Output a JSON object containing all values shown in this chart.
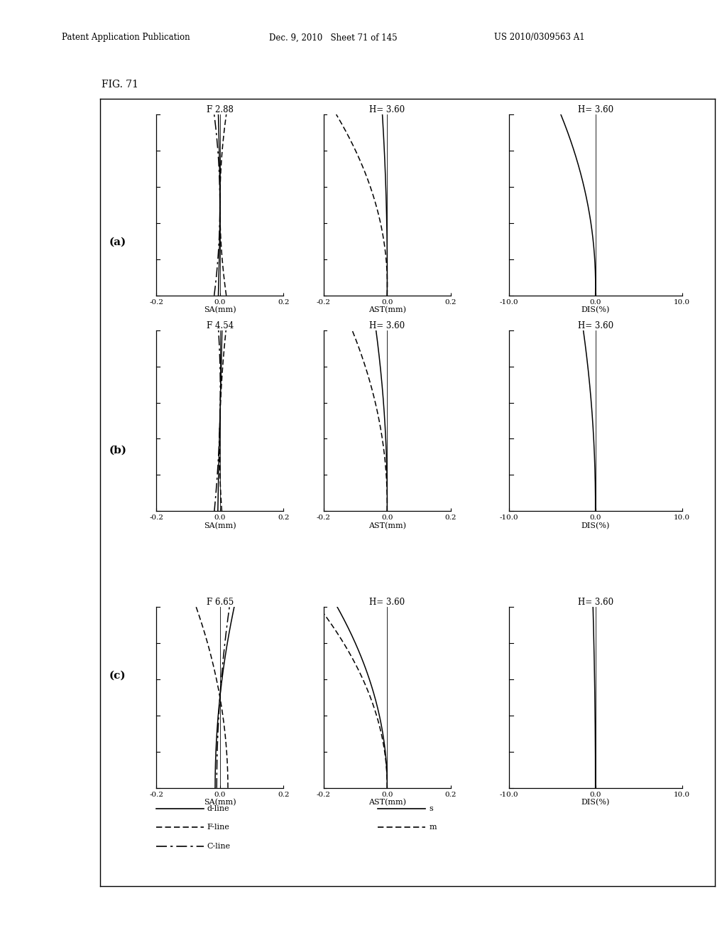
{
  "title_text": "FIG. 71",
  "header_left": "Patent Application Publication",
  "header_mid": "Dec. 9, 2010   Sheet 71 of 145",
  "header_right": "US 2010/0309563 A1",
  "rows": [
    "(a)",
    "(b)",
    "(c)"
  ],
  "sa_titles": [
    "F 2.88",
    "F 4.54",
    "F 6.65"
  ],
  "ast_titles": [
    "H= 3.60",
    "H= 3.60",
    "H= 3.60"
  ],
  "dis_titles": [
    "H= 3.60",
    "H= 3.60",
    "H= 3.60"
  ],
  "sa_xlim": [
    -0.2,
    0.2
  ],
  "ast_xlim": [
    -0.2,
    0.2
  ],
  "dis_xlim": [
    -10.0,
    10.0
  ],
  "sa_xticks": [
    -0.2,
    0.0,
    0.2
  ],
  "ast_xticks": [
    -0.2,
    0.0,
    0.2
  ],
  "dis_xticks": [
    -10.0,
    0.0,
    10.0
  ],
  "sa_xlabel": "SA(mm)",
  "ast_xlabel": "AST(mm)",
  "dis_xlabel": "DIS(%)",
  "background_color": "#ffffff"
}
